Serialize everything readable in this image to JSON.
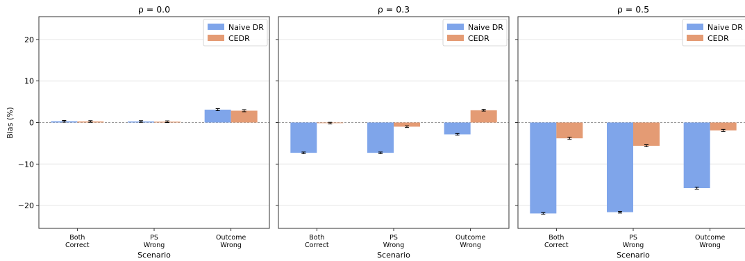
{
  "figure": {
    "ylabel": "Bias (%)",
    "xlabel": "Scenario",
    "categories": [
      "Both\nCorrect",
      "PS\nWrong",
      "Outcome\nWrong"
    ],
    "series_names": [
      "Naive DR",
      "CEDR"
    ],
    "colors": {
      "naive": "#7FA5EA",
      "cedr": "#E49B74",
      "zero_line": "#999999",
      "grid": "#e6e6e6"
    }
  },
  "chart_data": [
    {
      "type": "bar",
      "title": "ρ = 0.0",
      "categories": [
        "Both\nCorrect",
        "PS\nWrong",
        "Outcome\nWrong"
      ],
      "series": [
        {
          "name": "Naive DR",
          "values": [
            0.3,
            0.25,
            3.1
          ],
          "errors": [
            0.2,
            0.2,
            0.25
          ]
        },
        {
          "name": "CEDR",
          "values": [
            0.25,
            0.2,
            2.85
          ],
          "errors": [
            0.2,
            0.2,
            0.25
          ]
        }
      ],
      "xlabel": "Scenario",
      "ylabel": "Bias (%)",
      "ylim": [
        -25.5,
        25.5
      ],
      "yticks": [
        -20,
        -10,
        0,
        10,
        20
      ],
      "grid": "horizontal",
      "legend": "top-right"
    },
    {
      "type": "bar",
      "title": "ρ = 0.3",
      "categories": [
        "Both\nCorrect",
        "PS\nWrong",
        "Outcome\nWrong"
      ],
      "series": [
        {
          "name": "Naive DR",
          "values": [
            -7.3,
            -7.3,
            -2.85
          ],
          "errors": [
            0.2,
            0.2,
            0.2
          ]
        },
        {
          "name": "CEDR",
          "values": [
            -0.15,
            -1.0,
            2.95
          ],
          "errors": [
            0.2,
            0.2,
            0.2
          ]
        }
      ],
      "xlabel": "Scenario",
      "ylim": [
        -25.5,
        25.5
      ],
      "yticks": [
        -20,
        -10,
        0,
        10,
        20
      ],
      "grid": "horizontal",
      "legend": "top-right"
    },
    {
      "type": "bar",
      "title": "ρ = 0.5",
      "categories": [
        "Both\nCorrect",
        "PS\nWrong",
        "Outcome\nWrong"
      ],
      "series": [
        {
          "name": "Naive DR",
          "values": [
            -21.9,
            -21.6,
            -15.8
          ],
          "errors": [
            0.2,
            0.2,
            0.25
          ]
        },
        {
          "name": "CEDR",
          "values": [
            -3.8,
            -5.6,
            -1.9
          ],
          "errors": [
            0.25,
            0.25,
            0.25
          ]
        }
      ],
      "xlabel": "Scenario",
      "ylim": [
        -25.5,
        25.5
      ],
      "yticks": [
        -20,
        -10,
        0,
        10,
        20
      ],
      "grid": "horizontal",
      "legend": "top-right"
    }
  ]
}
